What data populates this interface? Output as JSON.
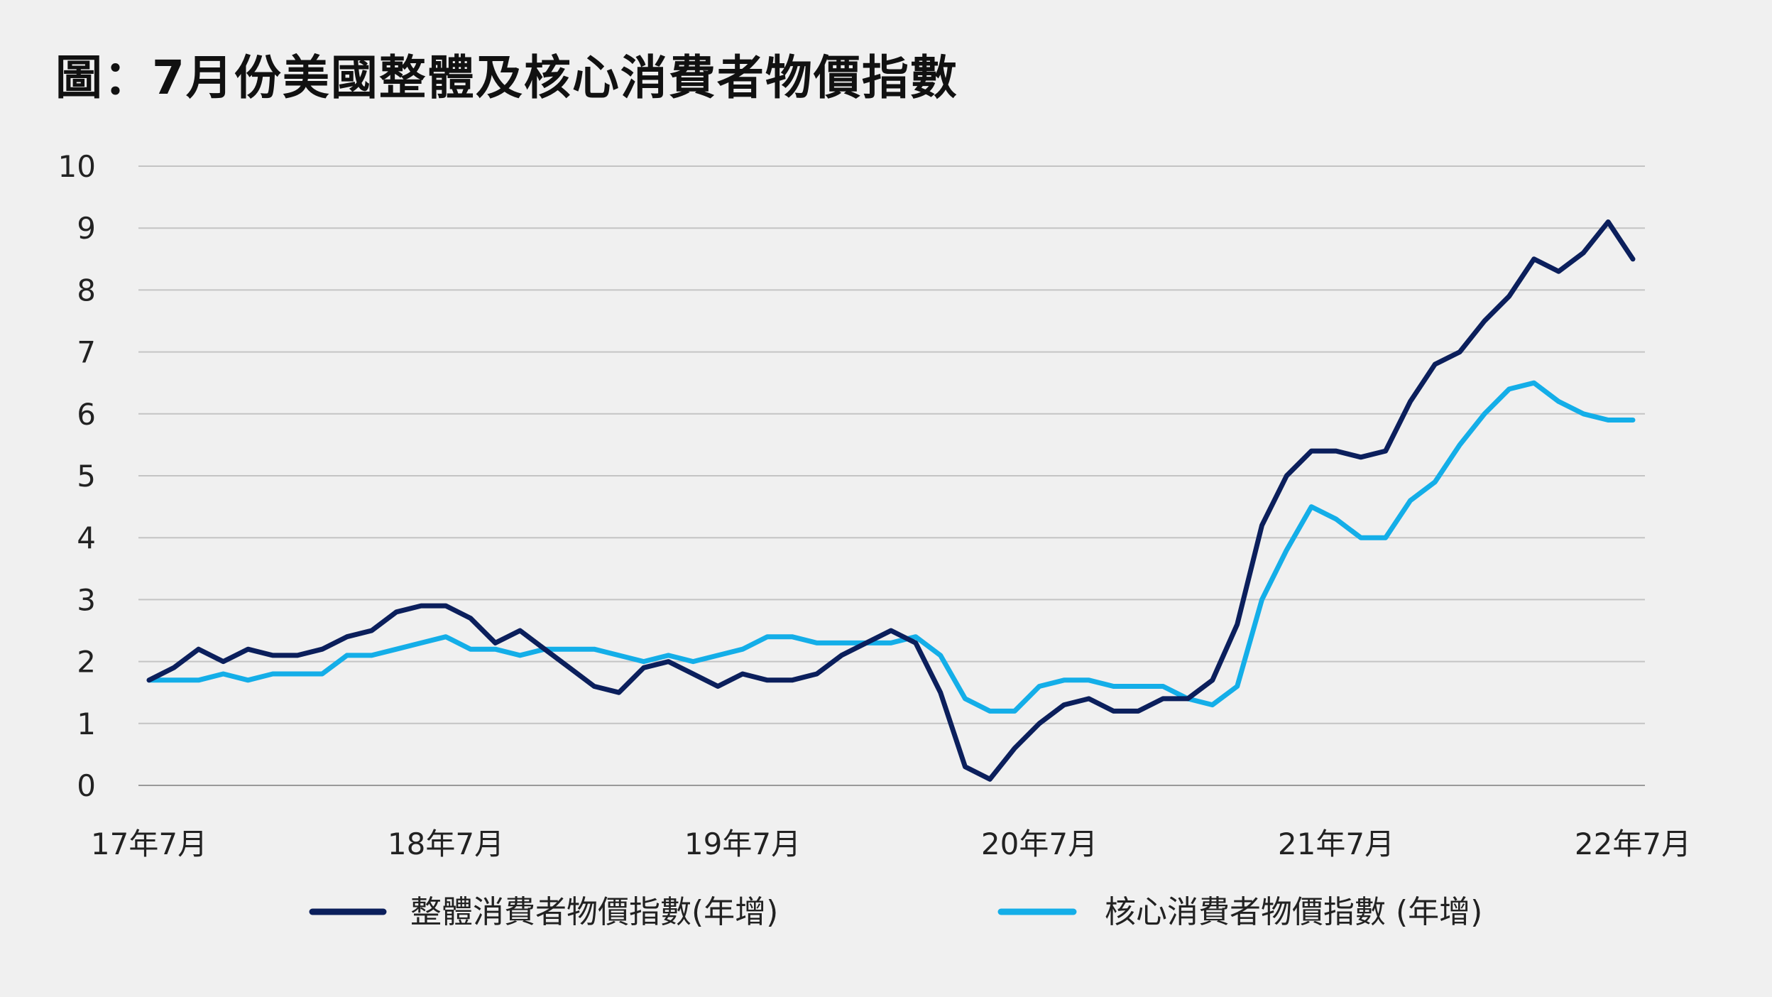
{
  "chart_data": {
    "type": "line",
    "title": "圖：7月份美國整體及核心消費者物價指數",
    "xlabel": "",
    "ylabel": "",
    "ylim": [
      0,
      10
    ],
    "yticks": [
      "0",
      "1",
      "2",
      "3",
      "4",
      "5",
      "6",
      "7",
      "8",
      "9",
      "10"
    ],
    "xtick_labels": [
      {
        "index": 0,
        "label": "17年7月"
      },
      {
        "index": 12,
        "label": "18年7月"
      },
      {
        "index": 24,
        "label": "19年7月"
      },
      {
        "index": 36,
        "label": "20年7月"
      },
      {
        "index": 48,
        "label": "21年7月"
      },
      {
        "index": 60,
        "label": "22年7月"
      }
    ],
    "grid": true,
    "legend_position": "bottom",
    "series": [
      {
        "name": "整體消費者物價指數(年增)",
        "color": "#0b1f5c",
        "values": [
          1.7,
          1.9,
          2.2,
          2.0,
          2.2,
          2.1,
          2.1,
          2.2,
          2.4,
          2.5,
          2.8,
          2.9,
          2.9,
          2.7,
          2.3,
          2.5,
          2.2,
          1.9,
          1.6,
          1.5,
          1.9,
          2.0,
          1.8,
          1.6,
          1.8,
          1.7,
          1.7,
          1.8,
          2.1,
          2.3,
          2.5,
          2.3,
          1.5,
          0.3,
          0.1,
          0.6,
          1.0,
          1.3,
          1.4,
          1.2,
          1.2,
          1.4,
          1.4,
          1.7,
          2.6,
          4.2,
          5.0,
          5.4,
          5.4,
          5.3,
          5.4,
          6.2,
          6.8,
          7.0,
          7.5,
          7.9,
          8.5,
          8.3,
          8.6,
          9.1,
          8.5
        ]
      },
      {
        "name": "核心消費者物價指數 (年增)",
        "color": "#14aee8",
        "values": [
          1.7,
          1.7,
          1.7,
          1.8,
          1.7,
          1.8,
          1.8,
          1.8,
          2.1,
          2.1,
          2.2,
          2.3,
          2.4,
          2.2,
          2.2,
          2.1,
          2.2,
          2.2,
          2.2,
          2.1,
          2.0,
          2.1,
          2.0,
          2.1,
          2.2,
          2.4,
          2.4,
          2.3,
          2.3,
          2.3,
          2.3,
          2.4,
          2.1,
          1.4,
          1.2,
          1.2,
          1.6,
          1.7,
          1.7,
          1.6,
          1.6,
          1.6,
          1.4,
          1.3,
          1.6,
          3.0,
          3.8,
          4.5,
          4.3,
          4.0,
          4.0,
          4.6,
          4.9,
          5.5,
          6.0,
          6.4,
          6.5,
          6.2,
          6.0,
          5.9,
          5.9
        ]
      }
    ]
  }
}
